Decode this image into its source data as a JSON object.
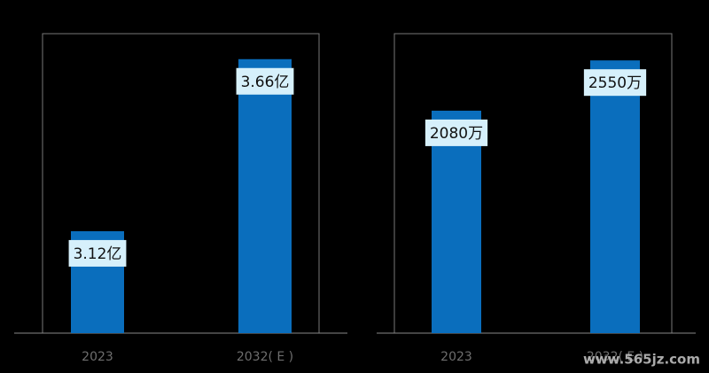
{
  "chart_data": [
    {
      "type": "bar",
      "categories": [
        "2023",
        "2032( E )"
      ],
      "values": [
        3.12,
        3.66
      ],
      "value_labels": [
        "3.12亿",
        "3.66亿"
      ],
      "color": "#0a6ebd",
      "ylim": [
        2.8,
        3.74
      ]
    },
    {
      "type": "bar",
      "categories": [
        "2023",
        "2032( E )"
      ],
      "values": [
        2080,
        2550
      ],
      "value_labels": [
        "2080万",
        "2550万"
      ],
      "color": "#0a6ebd",
      "ylim": [
        0,
        2800
      ]
    }
  ],
  "watermark": "www.565jz.com"
}
